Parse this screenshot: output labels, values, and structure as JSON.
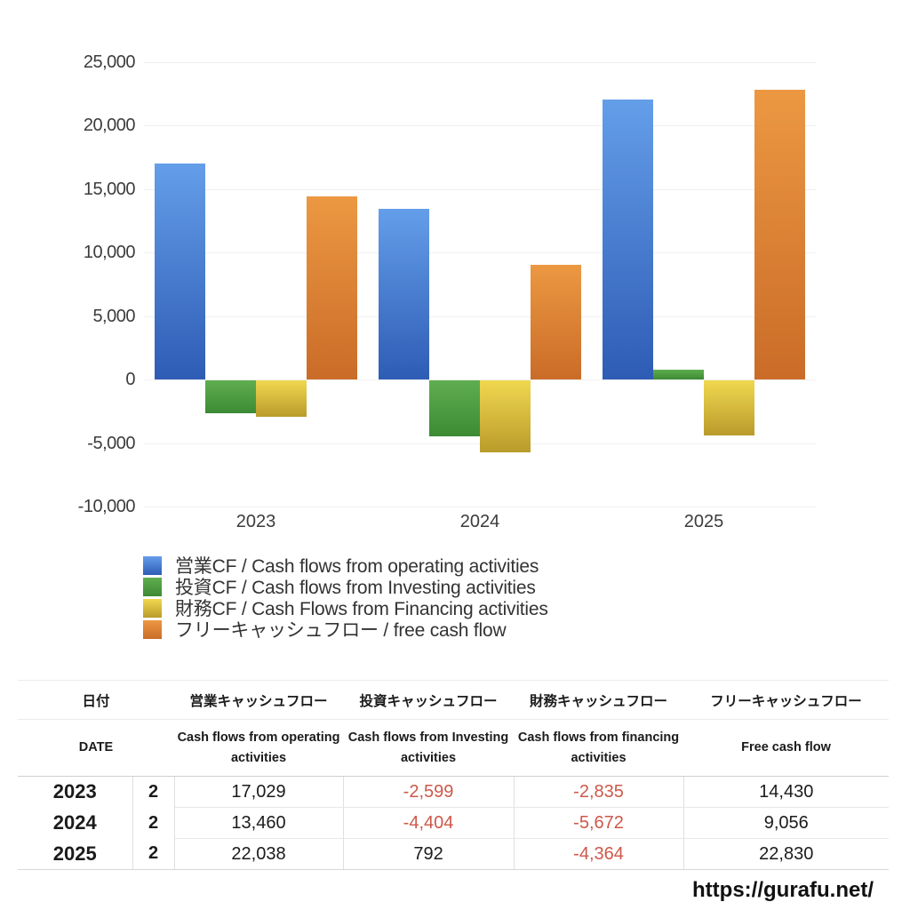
{
  "page": {
    "background": "#ffffff",
    "watermark": "https://gurafu.net/"
  },
  "chart_data": {
    "type": "bar",
    "title": "",
    "categories": [
      "2023",
      "2024",
      "2025"
    ],
    "series": [
      {
        "key": "operating",
        "name": "営業CF / Cash flows from operating activities",
        "values": [
          17029,
          13460,
          22038
        ],
        "color_top": "#649ee9",
        "color_bottom": "#2e5cb5"
      },
      {
        "key": "investing",
        "name": "投資CF / Cash flows from Investing activities",
        "values": [
          -2599,
          -4404,
          792
        ],
        "color_top": "#5fae4f",
        "color_bottom": "#3c8a34"
      },
      {
        "key": "financing",
        "name": "財務CF / Cash Flows from Financing activities",
        "values": [
          -2835,
          -5672,
          -4364
        ],
        "color_top": "#f0d850",
        "color_bottom": "#b99b2b"
      },
      {
        "key": "free_cash_flow",
        "name": "フリーキャッシュフロー / free cash flow",
        "values": [
          14430,
          9056,
          22830
        ],
        "color_top": "#ec9842",
        "color_bottom": "#ca6c28"
      }
    ],
    "ylim": [
      -10000,
      25000
    ],
    "ytick_step": 5000,
    "yticks": [
      {
        "value": 25000,
        "label": "25,000"
      },
      {
        "value": 20000,
        "label": "20,000"
      },
      {
        "value": 15000,
        "label": "15,000"
      },
      {
        "value": 10000,
        "label": "10,000"
      },
      {
        "value": 5000,
        "label": "5,000"
      },
      {
        "value": 0,
        "label": "0"
      },
      {
        "value": -5000,
        "label": "-5,000"
      },
      {
        "value": -10000,
        "label": "-10,000"
      }
    ],
    "grid": true,
    "legend_position": "bottom-left"
  },
  "table": {
    "header_jp": [
      "日付",
      "営業キャッシュフロー",
      "投資キャッシュフロー",
      "財務キャッシュフロー",
      "フリーキャッシュフロー"
    ],
    "header_en": [
      "DATE",
      "Cash flows from operating activities",
      "Cash flows from Investing activities",
      "Cash flows from financing activities",
      "Free cash flow"
    ],
    "rows": [
      {
        "year": "2023",
        "month": "2",
        "operating": "17,029",
        "investing": "-2,599",
        "financing": "-2,835",
        "free": "14,430"
      },
      {
        "year": "2024",
        "month": "2",
        "operating": "13,460",
        "investing": "-4,404",
        "financing": "-5,672",
        "free": "9,056"
      },
      {
        "year": "2025",
        "month": "2",
        "operating": "22,038",
        "investing": "792",
        "financing": "-4,364",
        "free": "22,830"
      }
    ],
    "negative_color": "#cd584a"
  }
}
